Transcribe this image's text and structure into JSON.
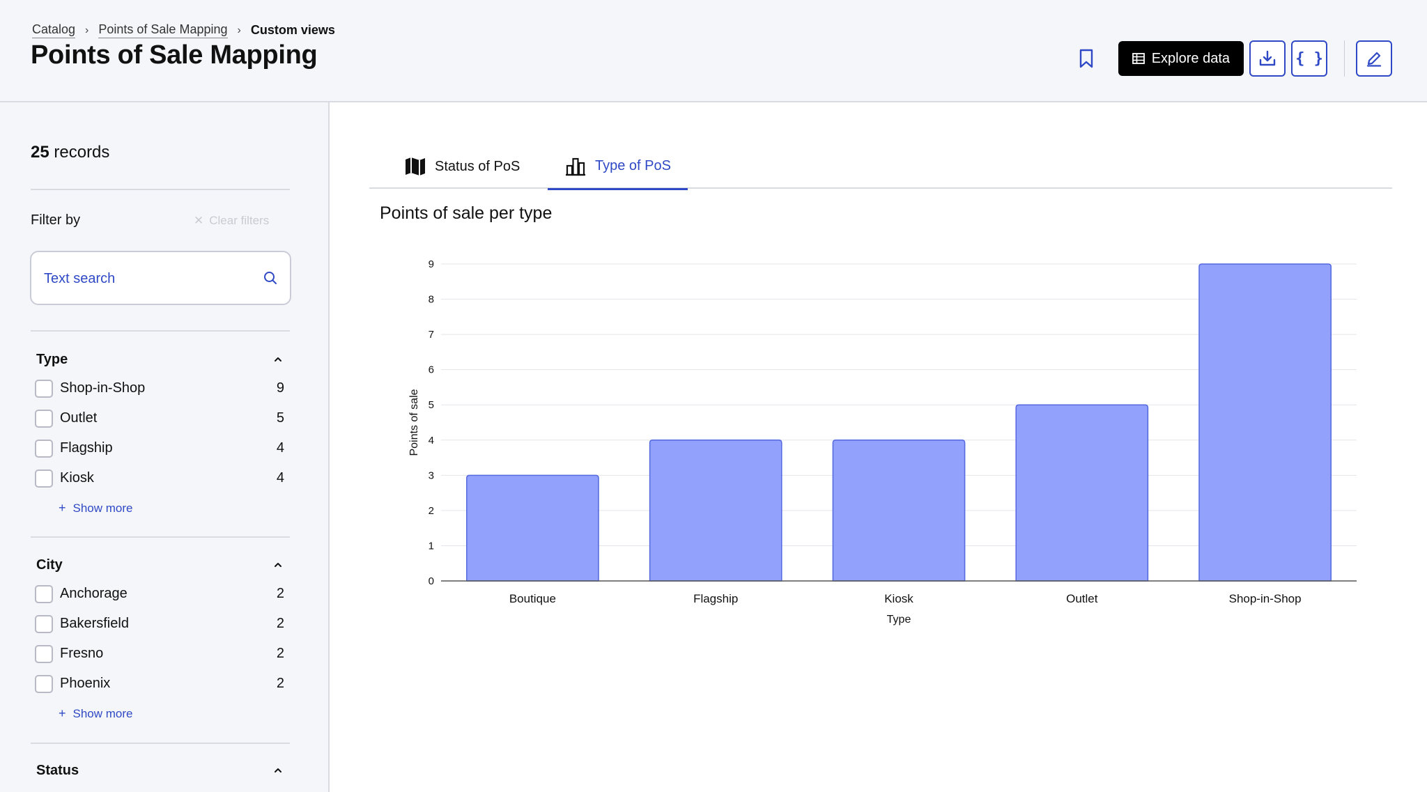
{
  "breadcrumb": {
    "items": [
      "Catalog",
      "Points of Sale Mapping"
    ],
    "current": "Custom views"
  },
  "header": {
    "title": "Points of Sale Mapping",
    "explore_label": "Explore data",
    "icons": [
      "bookmark-icon",
      "table-icon",
      "download-icon",
      "code-braces-icon",
      "edit-icon"
    ]
  },
  "sidebar": {
    "records_count": "25",
    "records_label": "records",
    "filter_by": "Filter by",
    "clear_filters": "Clear filters",
    "search_placeholder": "Text search",
    "show_more": "Show more",
    "facets": [
      {
        "title": "Type",
        "items": [
          {
            "label": "Shop-in-Shop",
            "count": "9"
          },
          {
            "label": "Outlet",
            "count": "5"
          },
          {
            "label": "Flagship",
            "count": "4"
          },
          {
            "label": "Kiosk",
            "count": "4"
          }
        ]
      },
      {
        "title": "City",
        "items": [
          {
            "label": "Anchorage",
            "count": "2"
          },
          {
            "label": "Bakersfield",
            "count": "2"
          },
          {
            "label": "Fresno",
            "count": "2"
          },
          {
            "label": "Phoenix",
            "count": "2"
          }
        ]
      },
      {
        "title": "Status",
        "items": []
      }
    ]
  },
  "tabs": [
    {
      "label": "Status of PoS",
      "icon": "map-icon",
      "active": false
    },
    {
      "label": "Type of PoS",
      "icon": "bar-chart-icon",
      "active": true
    }
  ],
  "colors": {
    "accent": "#2f49c6",
    "bar_fill": "#92a1fb",
    "bar_stroke": "#5468e0"
  },
  "chart_data": {
    "type": "bar",
    "title": "Points of sale per type",
    "categories": [
      "Boutique",
      "Flagship",
      "Kiosk",
      "Outlet",
      "Shop-in-Shop"
    ],
    "values": [
      3,
      4,
      4,
      5,
      9
    ],
    "xlabel": "Type",
    "ylabel": "Points of sale",
    "ylim": [
      0,
      9
    ],
    "yticks": [
      0,
      1,
      2,
      3,
      4,
      5,
      6,
      7,
      8,
      9
    ],
    "grid": true
  }
}
